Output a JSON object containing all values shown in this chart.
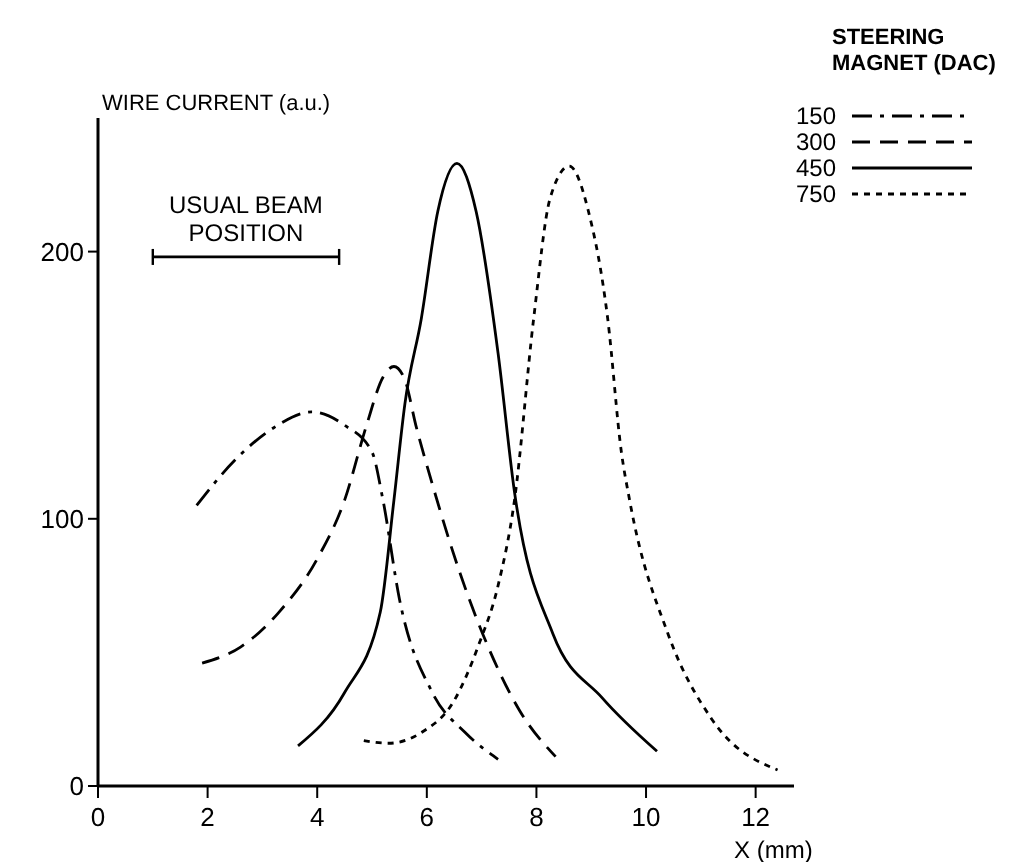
{
  "chart_data": {
    "type": "line",
    "xlabel": "X (mm)",
    "ylabel": "WIRE CURRENT (a.u.)",
    "legend_title": "STEERING MAGNET (DAC)",
    "legend": "top right",
    "xlim": [
      0,
      12.7
    ],
    "ylim": [
      0,
      250
    ],
    "xticks": [
      0,
      2,
      4,
      6,
      8,
      10,
      12
    ],
    "yticks": [
      0,
      100,
      200
    ],
    "grid": false,
    "annotations": [
      {
        "text": "USUAL BEAM POSITION",
        "x": 2.7,
        "y": 198
      }
    ],
    "series": [
      {
        "name": "150",
        "color": "#000000",
        "line_style": "dashdot",
        "x": [
          1.8,
          2.5,
          3.2,
          3.9,
          4.5,
          5.0,
          5.2,
          5.5,
          6.1,
          6.7,
          7.3
        ],
        "values": [
          105,
          122,
          134,
          140,
          135,
          125,
          107,
          70,
          35,
          20,
          10
        ]
      },
      {
        "name": "300",
        "color": "#000000",
        "line_style": "dashed",
        "x": [
          1.9,
          2.6,
          3.3,
          4.0,
          4.5,
          4.9,
          5.2,
          5.4,
          5.6,
          5.8,
          6.1,
          6.6,
          7.1,
          7.7,
          8.35
        ],
        "values": [
          46,
          52,
          65,
          85,
          107,
          135,
          153,
          157,
          152,
          135,
          113,
          80,
          53,
          28,
          11
        ]
      },
      {
        "name": "450",
        "color": "#000000",
        "line_style": "solid",
        "x": [
          3.65,
          4.5,
          5.15,
          5.4,
          5.6,
          5.9,
          6.2,
          6.55,
          6.9,
          7.3,
          7.6,
          8.3,
          9.2,
          10.2
        ],
        "values": [
          15,
          35,
          65,
          107,
          143,
          175,
          215,
          233,
          215,
          162,
          110,
          57,
          33,
          13
        ]
      },
      {
        "name": "750",
        "color": "#000000",
        "line_style": "dotted",
        "x": [
          4.85,
          5.3,
          5.9,
          6.5,
          6.95,
          7.3,
          7.6,
          7.95,
          8.25,
          8.6,
          8.95,
          9.3,
          9.55,
          9.7,
          10.4,
          11.2,
          12.4
        ],
        "values": [
          17,
          16,
          20,
          32,
          53,
          75,
          107,
          175,
          220,
          232,
          215,
          175,
          125,
          107,
          57,
          25,
          6
        ]
      },
      {
        "color": "#000000",
        "line_style": "solid",
        "x": [
          1,
          4.4
        ],
        "values": [
          198,
          198
        ]
      }
    ]
  }
}
